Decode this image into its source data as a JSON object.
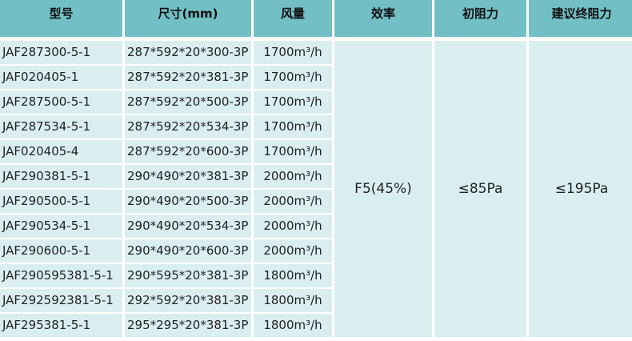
{
  "headers": [
    "型号",
    "尺寸(mm)",
    "风量",
    "效率",
    "初阻力",
    "建议终阻力"
  ],
  "rows": [
    [
      "JAF287300-5-1",
      "287*592*20*300-3P",
      "1700m³/h"
    ],
    [
      "JAF020405-1",
      "287*592*20*381-3P",
      "1700m³/h"
    ],
    [
      "JAF287500-5-1",
      "287*592*20*500-3P",
      "1700m³/h"
    ],
    [
      "JAF287534-5-1",
      "287*592*20*534-3P",
      "1700m³/h"
    ],
    [
      "JAF020405-4",
      "287*592*20*600-3P",
      "1700m³/h"
    ],
    [
      "JAF290381-5-1",
      "290*490*20*381-3P",
      "2000m³/h"
    ],
    [
      "JAF290500-5-1",
      "290*490*20*500-3P",
      "2000m³/h"
    ],
    [
      "JAF290534-5-1",
      "290*490*20*534-3P",
      "2000m³/h"
    ],
    [
      "JAF290600-5-1",
      "290*490*20*600-3P",
      "2000m³/h"
    ],
    [
      "JAF290595381-5-1",
      "290*595*20*381-3P",
      "1800m³/h"
    ],
    [
      "JAF292592381-5-1",
      "292*592*20*381-3P",
      "1800m³/h"
    ],
    [
      "JAF295381-5-1",
      "295*295*20*381-3P",
      "1800m³/h"
    ]
  ],
  "merged": {
    "efficiency": "F5(45%)",
    "initial_resistance": "≤85Pa",
    "final_resistance": "≤195Pa"
  },
  "colors": {
    "header_bg": "#72bfc5",
    "cell_bg": "#daeef0"
  }
}
